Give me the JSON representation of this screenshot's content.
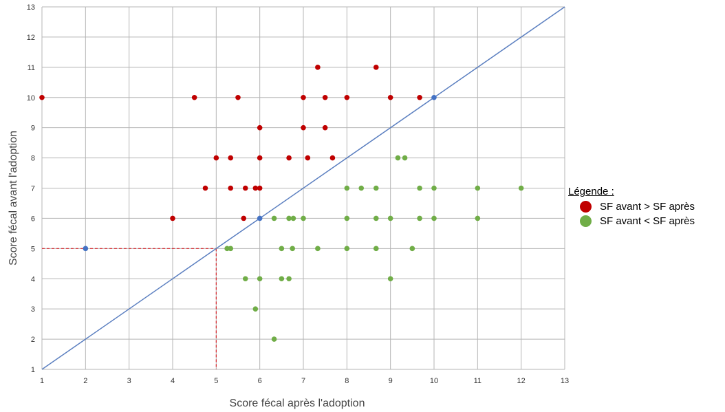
{
  "chart_data": {
    "type": "scatter",
    "xlabel": "Score fécal après l'adoption",
    "ylabel": "Score fécal avant l'adoption",
    "xlim": [
      1,
      13
    ],
    "ylim": [
      1,
      13
    ],
    "xticks": [
      "1",
      "2",
      "3",
      "4",
      "5",
      "6",
      "7",
      "8",
      "9",
      "10",
      "11",
      "12",
      "13"
    ],
    "yticks": [
      "1",
      "2",
      "3",
      "4",
      "5",
      "6",
      "7",
      "8",
      "9",
      "10",
      "11",
      "12",
      "13"
    ],
    "grid": true,
    "legend_placement": "right",
    "legend_title": "Légende :",
    "reference_line": {
      "from": [
        1,
        1
      ],
      "to": [
        13,
        13
      ],
      "color": "#5b7fc0"
    },
    "guide_point": {
      "x": 5,
      "y": 5,
      "color": "#d9262c"
    },
    "series": [
      {
        "name": "SF avant > SF après",
        "color": "#c00000",
        "points": [
          [
            1,
            10
          ],
          [
            4.5,
            10
          ],
          [
            5.5,
            10
          ],
          [
            7,
            10
          ],
          [
            7.5,
            10
          ],
          [
            8,
            10
          ],
          [
            9,
            10
          ],
          [
            9.67,
            10
          ],
          [
            7.33,
            11
          ],
          [
            8.67,
            11
          ],
          [
            6,
            9
          ],
          [
            7,
            9
          ],
          [
            7.5,
            9
          ],
          [
            5,
            8
          ],
          [
            5.33,
            8
          ],
          [
            6,
            8
          ],
          [
            6.67,
            8
          ],
          [
            7.1,
            8
          ],
          [
            7.67,
            8
          ],
          [
            4.75,
            7
          ],
          [
            5.33,
            7
          ],
          [
            5.67,
            7
          ],
          [
            5.9,
            7
          ],
          [
            6,
            7
          ],
          [
            4,
            6
          ],
          [
            5.63,
            6
          ]
        ]
      },
      {
        "name": "SF avant < SF après",
        "color": "#70ad47",
        "points": [
          [
            9.17,
            8
          ],
          [
            9.33,
            8
          ],
          [
            8,
            7
          ],
          [
            8.33,
            7
          ],
          [
            8.67,
            7
          ],
          [
            9.67,
            7
          ],
          [
            10,
            7
          ],
          [
            11,
            7
          ],
          [
            12,
            7
          ],
          [
            6.33,
            6
          ],
          [
            6.67,
            6
          ],
          [
            6.77,
            6
          ],
          [
            7,
            6
          ],
          [
            8,
            6
          ],
          [
            8.67,
            6
          ],
          [
            9,
            6
          ],
          [
            9.67,
            6
          ],
          [
            10,
            6
          ],
          [
            11,
            6
          ],
          [
            5.25,
            5
          ],
          [
            5.33,
            5
          ],
          [
            6.5,
            5
          ],
          [
            6.75,
            5
          ],
          [
            7.33,
            5
          ],
          [
            8,
            5
          ],
          [
            8.67,
            5
          ],
          [
            9.5,
            5
          ],
          [
            5.67,
            4
          ],
          [
            6,
            4
          ],
          [
            6.5,
            4
          ],
          [
            6.67,
            4
          ],
          [
            9,
            4
          ],
          [
            5.9,
            3
          ],
          [
            6.33,
            2
          ]
        ]
      },
      {
        "color": "#4472c4",
        "points": [
          [
            2,
            5
          ],
          [
            6,
            6
          ],
          [
            10,
            10
          ]
        ]
      }
    ]
  }
}
